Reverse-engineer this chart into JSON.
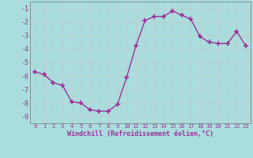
{
  "x": [
    0,
    1,
    2,
    3,
    4,
    5,
    6,
    7,
    8,
    9,
    10,
    11,
    12,
    13,
    14,
    15,
    16,
    17,
    18,
    19,
    20,
    21,
    22,
    23
  ],
  "y": [
    -5.7,
    -5.9,
    -6.5,
    -6.7,
    -7.9,
    -8.0,
    -8.5,
    -8.6,
    -8.6,
    -8.1,
    -6.1,
    -3.8,
    -1.9,
    -1.6,
    -1.6,
    -1.2,
    -1.5,
    -1.8,
    -3.1,
    -3.5,
    -3.6,
    -3.6,
    -2.7,
    -3.8
  ],
  "line_color": "#993399",
  "marker": "+",
  "markersize": 4,
  "linewidth": 1.0,
  "bg_color": "#aadddd",
  "grid_color": "#bbcccc",
  "xlabel": "Windchill (Refroidissement éolien,°C)",
  "xlabel_color": "#993399",
  "tick_color": "#993399",
  "axis_color": "#777777",
  "ylim": [
    -9.5,
    -0.5
  ],
  "xlim": [
    -0.5,
    23.5
  ],
  "yticks": [
    -9,
    -8,
    -7,
    -6,
    -5,
    -4,
    -3,
    -2,
    -1
  ],
  "xticks": [
    0,
    1,
    2,
    3,
    4,
    5,
    6,
    7,
    8,
    9,
    10,
    11,
    12,
    13,
    14,
    15,
    16,
    17,
    18,
    19,
    20,
    21,
    22,
    23
  ],
  "figsize": [
    3.2,
    2.0
  ],
  "dpi": 100
}
